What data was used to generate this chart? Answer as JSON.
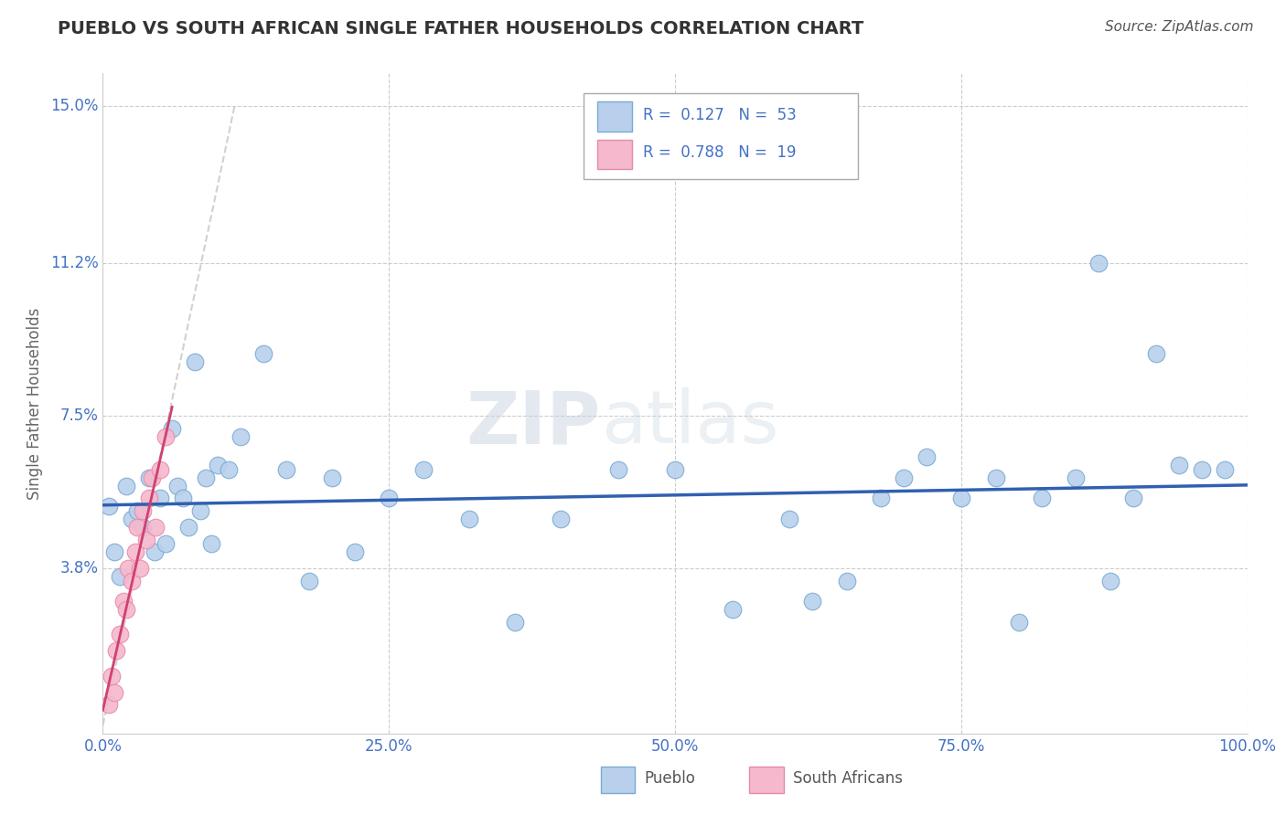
{
  "title": "PUEBLO VS SOUTH AFRICAN SINGLE FATHER HOUSEHOLDS CORRELATION CHART",
  "source": "Source: ZipAtlas.com",
  "tick_color": "#4472c4",
  "ylabel": "Single Father Households",
  "xlim": [
    0,
    1.0
  ],
  "ylim": [
    -0.002,
    0.158
  ],
  "yticks": [
    0.038,
    0.075,
    0.112,
    0.15
  ],
  "ytick_labels": [
    "3.8%",
    "7.5%",
    "11.2%",
    "15.0%"
  ],
  "xtick_labels": [
    "0.0%",
    "25.0%",
    "50.0%",
    "75.0%",
    "100.0%"
  ],
  "xticks": [
    0.0,
    0.25,
    0.5,
    0.75,
    1.0
  ],
  "watermark_top": "ZIP",
  "watermark_bottom": "atlas",
  "pueblo_color": "#b8d0ec",
  "sa_color": "#f5b8cc",
  "pueblo_edge": "#7aaad4",
  "sa_edge": "#e88aaa",
  "r_pueblo": 0.127,
  "n_pueblo": 53,
  "r_sa": 0.788,
  "n_sa": 19,
  "pueblo_x": [
    0.005,
    0.01,
    0.015,
    0.02,
    0.025,
    0.03,
    0.035,
    0.04,
    0.045,
    0.05,
    0.055,
    0.06,
    0.065,
    0.07,
    0.075,
    0.08,
    0.085,
    0.09,
    0.095,
    0.1,
    0.11,
    0.12,
    0.14,
    0.16,
    0.18,
    0.2,
    0.22,
    0.25,
    0.28,
    0.32,
    0.36,
    0.4,
    0.45,
    0.5,
    0.55,
    0.6,
    0.62,
    0.65,
    0.68,
    0.7,
    0.72,
    0.75,
    0.78,
    0.8,
    0.82,
    0.85,
    0.87,
    0.88,
    0.9,
    0.92,
    0.94,
    0.96,
    0.98
  ],
  "pueblo_y": [
    0.053,
    0.042,
    0.036,
    0.058,
    0.05,
    0.052,
    0.048,
    0.06,
    0.042,
    0.055,
    0.044,
    0.072,
    0.058,
    0.055,
    0.048,
    0.088,
    0.052,
    0.06,
    0.044,
    0.063,
    0.062,
    0.07,
    0.09,
    0.062,
    0.035,
    0.06,
    0.042,
    0.055,
    0.062,
    0.05,
    0.025,
    0.05,
    0.062,
    0.062,
    0.028,
    0.05,
    0.03,
    0.035,
    0.055,
    0.06,
    0.065,
    0.055,
    0.06,
    0.025,
    0.055,
    0.06,
    0.112,
    0.035,
    0.055,
    0.09,
    0.063,
    0.062,
    0.062
  ],
  "sa_x": [
    0.005,
    0.008,
    0.01,
    0.012,
    0.015,
    0.018,
    0.02,
    0.022,
    0.025,
    0.028,
    0.03,
    0.032,
    0.035,
    0.038,
    0.04,
    0.043,
    0.046,
    0.05,
    0.055
  ],
  "sa_y": [
    0.005,
    0.012,
    0.008,
    0.018,
    0.022,
    0.03,
    0.028,
    0.038,
    0.035,
    0.042,
    0.048,
    0.038,
    0.052,
    0.045,
    0.055,
    0.06,
    0.048,
    0.062,
    0.07
  ],
  "grid_color": "#cccccc",
  "trendline_pueblo_color": "#3060b0",
  "trendline_sa_color": "#d04070",
  "identity_line_color": "#cccccc",
  "legend_r_color": "#4472c4",
  "legend_n_color": "#4472c4"
}
